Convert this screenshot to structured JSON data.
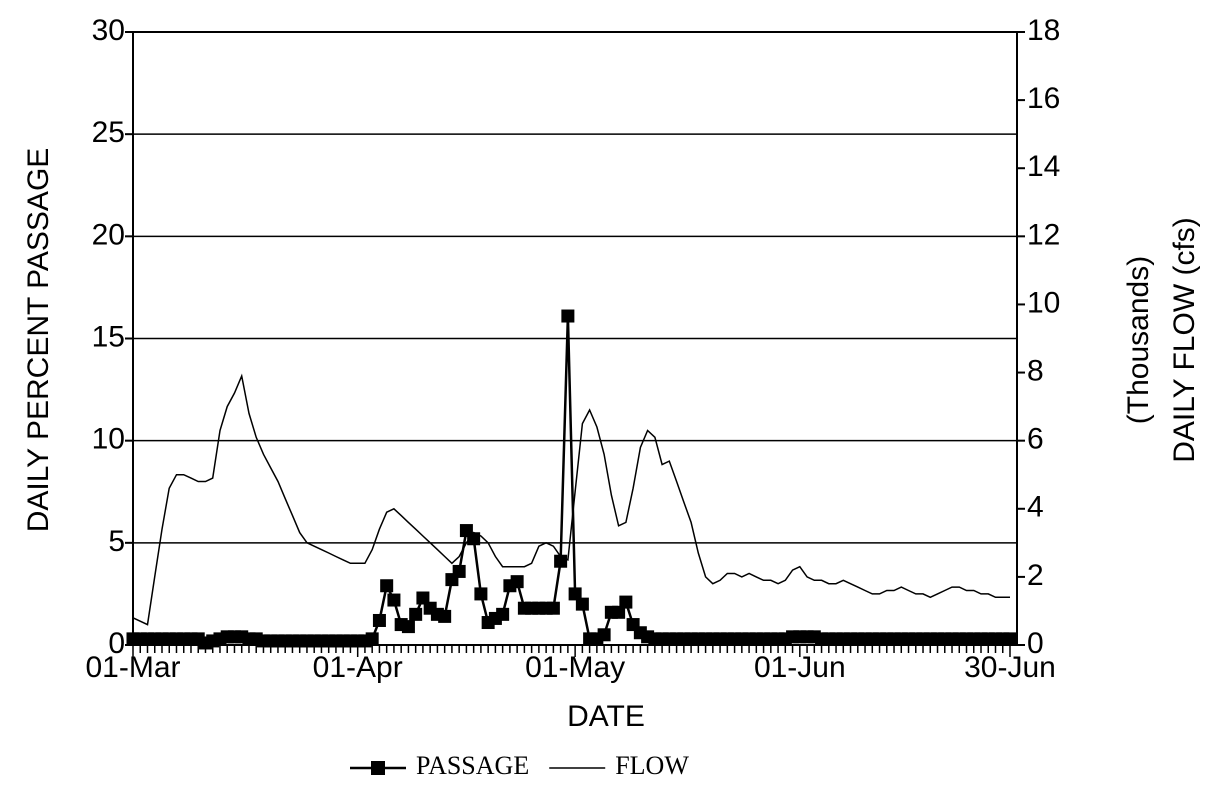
{
  "chart_data": {
    "type": "line",
    "xlabel": "DATE",
    "ylabel": "DAILY PERCENT PASSAGE",
    "y2label": [
      "(Thousands)",
      "DAILY FLOW (cfs)"
    ],
    "categories": [
      "01-Mar",
      null,
      null,
      null,
      null,
      null,
      null,
      null,
      null,
      null,
      null,
      null,
      null,
      null,
      null,
      null,
      null,
      null,
      null,
      null,
      null,
      null,
      null,
      null,
      null,
      null,
      null,
      null,
      null,
      null,
      null,
      "01-Apr",
      null,
      null,
      null,
      null,
      null,
      null,
      null,
      null,
      null,
      null,
      null,
      null,
      null,
      null,
      null,
      null,
      null,
      null,
      null,
      null,
      null,
      null,
      null,
      null,
      null,
      null,
      null,
      null,
      null,
      "01-May",
      null,
      null,
      null,
      null,
      null,
      null,
      null,
      null,
      null,
      null,
      null,
      null,
      null,
      null,
      null,
      null,
      null,
      null,
      null,
      null,
      null,
      null,
      null,
      null,
      null,
      null,
      null,
      null,
      null,
      null,
      "01-Jun",
      null,
      null,
      null,
      null,
      null,
      null,
      null,
      null,
      null,
      null,
      null,
      null,
      null,
      null,
      null,
      null,
      null,
      null,
      null,
      null,
      null,
      null,
      null,
      null,
      null,
      null,
      null,
      null,
      "30-Jun"
    ],
    "series": [
      {
        "name": "PASSAGE",
        "color": "#000000",
        "marker": "square",
        "values": [
          0.3,
          0.3,
          0.3,
          0.3,
          0.3,
          0.3,
          0.3,
          0.3,
          0.3,
          0.3,
          0.1,
          0.2,
          0.3,
          0.4,
          0.4,
          0.4,
          0.3,
          0.3,
          0.2,
          0.2,
          0.2,
          0.2,
          0.2,
          0.2,
          0.2,
          0.2,
          0.2,
          0.2,
          0.2,
          0.2,
          0.2,
          0.2,
          0.2,
          0.3,
          1.2,
          2.9,
          2.2,
          1.0,
          0.9,
          1.5,
          2.3,
          1.8,
          1.5,
          1.4,
          3.2,
          3.6,
          5.6,
          5.2,
          2.5,
          1.1,
          1.3,
          1.5,
          2.9,
          3.1,
          1.8,
          1.8,
          1.8,
          1.8,
          1.8,
          4.1,
          16.1,
          2.5,
          2.0,
          0.3,
          0.3,
          0.5,
          1.6,
          1.6,
          2.1,
          1.0,
          0.6,
          0.4,
          0.3,
          0.3,
          0.3,
          0.3,
          0.3,
          0.3,
          0.3,
          0.3,
          0.3,
          0.3,
          0.3,
          0.3,
          0.3,
          0.3,
          0.3,
          0.3,
          0.3,
          0.3,
          0.3,
          0.4,
          0.4,
          0.4,
          0.4,
          0.3,
          0.3,
          0.3,
          0.3,
          0.3,
          0.3,
          0.3,
          0.3,
          0.3,
          0.3,
          0.3,
          0.3,
          0.3,
          0.3,
          0.3,
          0.3,
          0.3,
          0.3,
          0.3,
          0.3,
          0.3,
          0.3,
          0.3,
          0.3,
          0.3,
          0.3,
          0.3
        ]
      },
      {
        "name": "FLOW",
        "color": "#000000",
        "axis": "y2",
        "values": [
          0.8,
          0.7,
          0.6,
          2.0,
          3.4,
          4.6,
          5.0,
          5.0,
          4.9,
          4.8,
          4.8,
          4.9,
          6.3,
          7.0,
          7.4,
          7.9,
          6.8,
          6.1,
          5.6,
          5.2,
          4.8,
          4.3,
          3.8,
          3.3,
          3.0,
          2.9,
          2.8,
          2.7,
          2.6,
          2.5,
          2.4,
          2.4,
          2.4,
          2.8,
          3.4,
          3.9,
          4.0,
          3.8,
          3.6,
          3.4,
          3.2,
          3.0,
          2.8,
          2.6,
          2.4,
          2.6,
          3.0,
          3.3,
          3.2,
          3.0,
          2.6,
          2.3,
          2.3,
          2.3,
          2.3,
          2.4,
          2.9,
          3.0,
          2.9,
          2.6,
          2.5,
          4.5,
          6.5,
          6.9,
          6.4,
          5.6,
          4.4,
          3.5,
          3.6,
          4.6,
          5.8,
          6.3,
          6.1,
          5.3,
          5.4,
          4.8,
          4.2,
          3.6,
          2.7,
          2.0,
          1.8,
          1.9,
          2.1,
          2.1,
          2.0,
          2.1,
          2.0,
          1.9,
          1.9,
          1.8,
          1.9,
          2.2,
          2.3,
          2.0,
          1.9,
          1.9,
          1.8,
          1.8,
          1.9,
          1.8,
          1.7,
          1.6,
          1.5,
          1.5,
          1.6,
          1.6,
          1.7,
          1.6,
          1.5,
          1.5,
          1.4,
          1.5,
          1.6,
          1.7,
          1.7,
          1.6,
          1.6,
          1.5,
          1.5,
          1.4,
          1.4,
          1.4
        ]
      }
    ],
    "ylim": [
      0,
      30
    ],
    "yticks": [
      0,
      5,
      10,
      15,
      20,
      25,
      30
    ],
    "y2lim": [
      0,
      18
    ],
    "y2ticks": [
      0,
      2,
      4,
      6,
      8,
      10,
      12,
      14,
      16,
      18
    ],
    "grid": true,
    "legend": "bottom"
  }
}
